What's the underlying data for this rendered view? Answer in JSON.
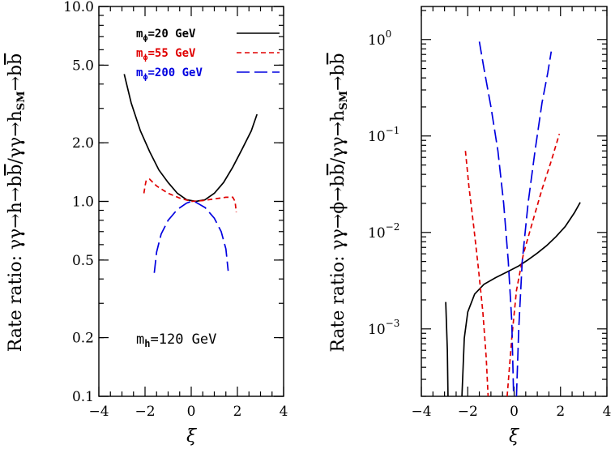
{
  "chart_data": [
    {
      "type": "line",
      "id": "left",
      "xlabel": "ξ",
      "ylabel": "Rate ratio: γγ→h→bb̄/γγ→h_SM→bb̄",
      "xlim": [
        -4,
        4
      ],
      "ylim": [
        0.1,
        10
      ],
      "yscale": "log",
      "x_ticks": [
        -4,
        -2,
        0,
        2,
        4
      ],
      "x_tick_labels": [
        "−4",
        "−2",
        "0",
        "2",
        "4"
      ],
      "y_ticks": [
        0.1,
        0.2,
        0.5,
        1.0,
        2.0,
        5.0,
        10.0
      ],
      "y_tick_labels": [
        "0.1",
        "0.2",
        "0.5",
        "1.0",
        "2.0",
        "5.0",
        "10.0"
      ],
      "annotation": "m_h=120 GeV",
      "legend": [
        {
          "label": "m_ϕ=20 GeV",
          "color": "#000000",
          "dash": "solid"
        },
        {
          "label": "m_ϕ=55 GeV",
          "color": "#e00000",
          "dash": "short"
        },
        {
          "label": "m_ϕ=200 GeV",
          "color": "#0000e0",
          "dash": "long"
        }
      ],
      "series": [
        {
          "color": "#000000",
          "dash": "solid",
          "points": [
            [
              -2.9,
              4.5
            ],
            [
              -2.6,
              3.2
            ],
            [
              -2.2,
              2.3
            ],
            [
              -1.8,
              1.8
            ],
            [
              -1.4,
              1.45
            ],
            [
              -1.0,
              1.25
            ],
            [
              -0.6,
              1.1
            ],
            [
              -0.2,
              1.02
            ],
            [
              0.2,
              1.0
            ],
            [
              0.6,
              1.02
            ],
            [
              1.0,
              1.1
            ],
            [
              1.4,
              1.25
            ],
            [
              1.8,
              1.5
            ],
            [
              2.2,
              1.85
            ],
            [
              2.6,
              2.3
            ],
            [
              2.85,
              2.8
            ]
          ]
        },
        {
          "color": "#e00000",
          "dash": "short",
          "points": [
            [
              -2.05,
              1.1
            ],
            [
              -2.0,
              1.2
            ],
            [
              -1.95,
              1.28
            ],
            [
              -1.8,
              1.3
            ],
            [
              -1.5,
              1.2
            ],
            [
              -1.0,
              1.1
            ],
            [
              -0.5,
              1.04
            ],
            [
              0.0,
              1.0
            ],
            [
              0.5,
              1.01
            ],
            [
              1.0,
              1.03
            ],
            [
              1.5,
              1.05
            ],
            [
              1.8,
              1.05
            ],
            [
              1.9,
              1.0
            ],
            [
              1.95,
              0.88
            ]
          ]
        },
        {
          "color": "#0000e0",
          "dash": "long",
          "points": [
            [
              -1.6,
              0.43
            ],
            [
              -1.5,
              0.55
            ],
            [
              -1.3,
              0.68
            ],
            [
              -1.0,
              0.8
            ],
            [
              -0.6,
              0.91
            ],
            [
              -0.2,
              0.98
            ],
            [
              0.0,
              1.0
            ],
            [
              0.2,
              0.99
            ],
            [
              0.6,
              0.93
            ],
            [
              1.0,
              0.82
            ],
            [
              1.3,
              0.7
            ],
            [
              1.5,
              0.57
            ],
            [
              1.6,
              0.44
            ]
          ]
        }
      ]
    },
    {
      "type": "line",
      "id": "right",
      "xlabel": "ξ",
      "ylabel": "Rate ratio: γγ→ϕ→bb̄/γγ→h_SM→bb̄",
      "xlim": [
        -4,
        4
      ],
      "ylim": [
        0.0002,
        2.2
      ],
      "yscale": "log",
      "x_ticks": [
        -4,
        -2,
        0,
        2,
        4
      ],
      "x_tick_labels": [
        "−4",
        "−2",
        "0",
        "2",
        "4"
      ],
      "y_ticks": [
        0.001,
        0.01,
        0.1,
        1
      ],
      "y_tick_labels": [
        "10",
        "10",
        "10",
        "10"
      ],
      "y_tick_exponents": [
        "−3",
        "−2",
        "−1",
        "0"
      ],
      "series": [
        {
          "color": "#000000",
          "dash": "solid",
          "points": [
            [
              -2.95,
              0.0019
            ],
            [
              -2.88,
              0.0006
            ],
            [
              -2.85,
              0.0002
            ]
          ]
        },
        {
          "color": "#000000",
          "dash": "solid",
          "points": [
            [
              -2.25,
              0.0002
            ],
            [
              -2.15,
              0.0008
            ],
            [
              -2.0,
              0.0015
            ],
            [
              -1.7,
              0.0023
            ],
            [
              -1.3,
              0.0029
            ],
            [
              -0.8,
              0.0034
            ],
            [
              -0.3,
              0.0039
            ],
            [
              0.2,
              0.0045
            ],
            [
              0.6,
              0.0052
            ],
            [
              1.0,
              0.0061
            ],
            [
              1.4,
              0.0073
            ],
            [
              1.8,
              0.009
            ],
            [
              2.2,
              0.0115
            ],
            [
              2.6,
              0.016
            ],
            [
              2.85,
              0.0205
            ]
          ]
        },
        {
          "color": "#e00000",
          "dash": "short",
          "points": [
            [
              -2.1,
              0.07
            ],
            [
              -1.95,
              0.03
            ],
            [
              -1.75,
              0.012
            ],
            [
              -1.55,
              0.0045
            ],
            [
              -1.35,
              0.0015
            ],
            [
              -1.2,
              0.0005
            ],
            [
              -1.12,
              0.0002
            ]
          ]
        },
        {
          "color": "#e00000",
          "dash": "short",
          "points": [
            [
              -0.3,
              0.0002
            ],
            [
              -0.1,
              0.0008
            ],
            [
              0.1,
              0.0025
            ],
            [
              0.4,
              0.006
            ],
            [
              0.8,
              0.013
            ],
            [
              1.2,
              0.028
            ],
            [
              1.6,
              0.055
            ],
            [
              1.95,
              0.105
            ]
          ]
        },
        {
          "color": "#0000e0",
          "dash": "long",
          "points": [
            [
              -1.5,
              0.95
            ],
            [
              -1.3,
              0.5
            ],
            [
              -1.0,
              0.2
            ],
            [
              -0.7,
              0.07
            ],
            [
              -0.45,
              0.02
            ],
            [
              -0.25,
              0.005
            ],
            [
              -0.1,
              0.0012
            ],
            [
              -0.02,
              0.0002
            ]
          ]
        },
        {
          "color": "#0000e0",
          "dash": "long",
          "points": [
            [
              0.1,
              0.0002
            ],
            [
              0.2,
              0.001
            ],
            [
              0.35,
              0.005
            ],
            [
              0.6,
              0.02
            ],
            [
              0.9,
              0.07
            ],
            [
              1.2,
              0.22
            ],
            [
              1.45,
              0.45
            ],
            [
              1.6,
              0.75
            ]
          ]
        }
      ]
    }
  ]
}
